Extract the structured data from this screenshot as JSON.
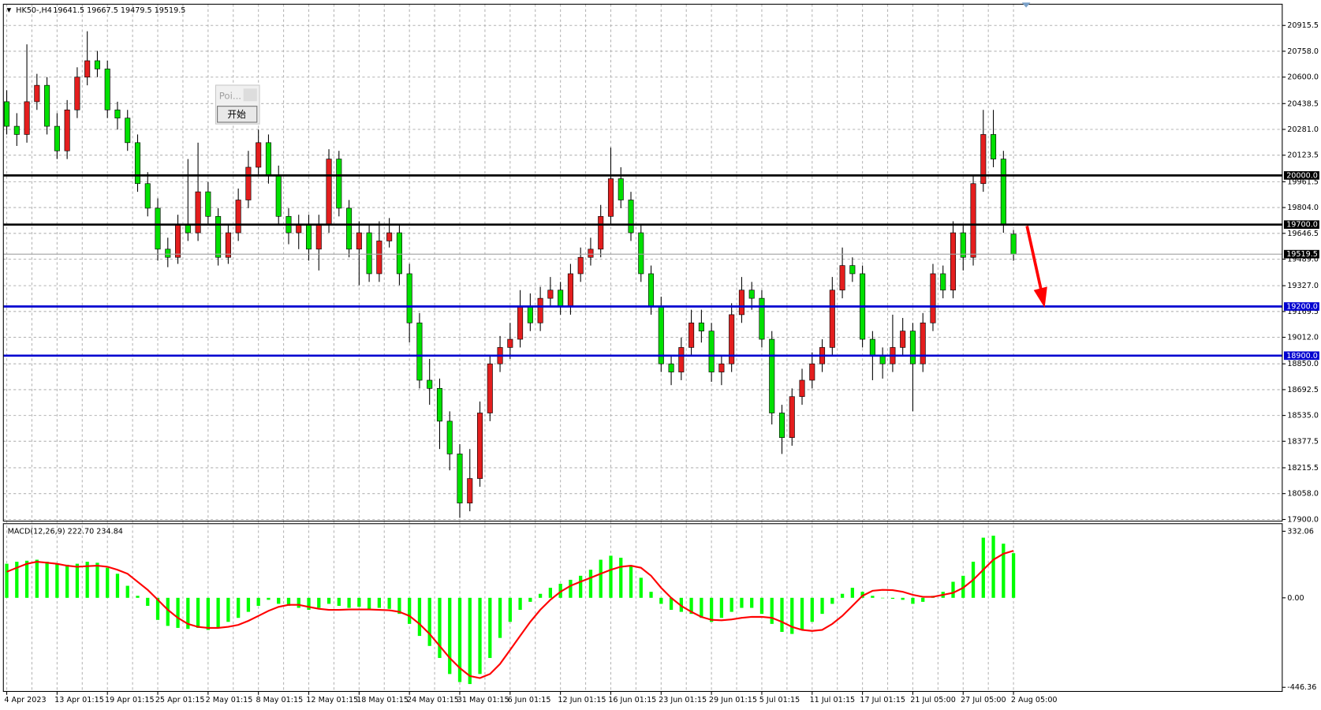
{
  "chart_data": {
    "type": "candlestick",
    "symbol": "HK50-,H4",
    "up_color": "#e41e1e",
    "down_color": "#00e000",
    "wick_color": "#000000",
    "ylim": [
      17890,
      21045
    ],
    "yticks": [
      20915.5,
      {
        "value": 20758,
        "label": "20758.0"
      },
      {
        "value": 20600,
        "label": "20600.0"
      },
      20438.5,
      {
        "value": 20281,
        "label": "20281.0"
      },
      20123.5,
      19961.5,
      {
        "value": 19804,
        "label": "19804.0"
      },
      19646.5,
      {
        "value": 19489,
        "label": "19489.0"
      },
      {
        "value": 19327,
        "label": "19327.0"
      },
      19169.5,
      {
        "value": 19012,
        "label": "19012.0"
      },
      {
        "value": 18850,
        "label": "18850.0"
      },
      18692.5,
      {
        "value": 18535,
        "label": "18535.0"
      },
      18377.5,
      18215.5,
      {
        "value": 18058,
        "label": "18058.0"
      },
      {
        "value": 17900,
        "label": "17900.0"
      }
    ],
    "grid": true,
    "categories": [
      "4 Apr 2023",
      null,
      null,
      null,
      null,
      "13 Apr 01:15",
      null,
      null,
      null,
      null,
      "19 Apr 01:15",
      null,
      null,
      null,
      null,
      "25 Apr 01:15",
      null,
      null,
      null,
      null,
      "2 May 01:15",
      null,
      null,
      null,
      null,
      "8 May 01:15",
      null,
      null,
      null,
      null,
      "12 May 01:15",
      null,
      null,
      null,
      null,
      "18 May 01:15",
      null,
      null,
      null,
      null,
      "24 May 01:15",
      null,
      null,
      null,
      null,
      "31 May 01:15",
      null,
      null,
      null,
      null,
      "6 Jun 01:15",
      null,
      null,
      null,
      null,
      "12 Jun 01:15",
      null,
      null,
      null,
      null,
      "16 Jun 01:15",
      null,
      null,
      null,
      null,
      "23 Jun 01:15",
      null,
      null,
      null,
      null,
      "29 Jun 01:15",
      null,
      null,
      null,
      null,
      "5 Jul 01:15",
      null,
      null,
      null,
      null,
      "11 Jul 01:15",
      null,
      null,
      null,
      null,
      "17 Jul 01:15",
      null,
      null,
      null,
      null,
      "21 Jul 05:00",
      null,
      null,
      null,
      null,
      "27 Jul 05:00",
      null,
      null,
      null,
      null,
      "2 Aug 05:00"
    ],
    "candles": [
      [
        20450,
        20520,
        20250,
        20300
      ],
      [
        20300,
        20380,
        20180,
        20250
      ],
      [
        20250,
        20800,
        20200,
        20450
      ],
      [
        20450,
        20620,
        20400,
        20550
      ],
      [
        20550,
        20600,
        20250,
        20300
      ],
      [
        20300,
        20380,
        20100,
        20150
      ],
      [
        20150,
        20460,
        20100,
        20400
      ],
      [
        20400,
        20660,
        20350,
        20600
      ],
      [
        20600,
        20880,
        20550,
        20700
      ],
      [
        20700,
        20760,
        20600,
        20650
      ],
      [
        20650,
        20700,
        20350,
        20400
      ],
      [
        20400,
        20450,
        20280,
        20350
      ],
      [
        20350,
        20400,
        20150,
        20200
      ],
      [
        20200,
        20250,
        19900,
        19950
      ],
      [
        19950,
        20020,
        19750,
        19800
      ],
      [
        19800,
        19860,
        19480,
        19550
      ],
      [
        19550,
        19620,
        19440,
        19500
      ],
      [
        19500,
        19760,
        19460,
        19700
      ],
      [
        19700,
        20100,
        19600,
        19650
      ],
      [
        19650,
        20200,
        19600,
        19900
      ],
      [
        19900,
        19960,
        19700,
        19750
      ],
      [
        19750,
        19800,
        19450,
        19500
      ],
      [
        19500,
        19700,
        19460,
        19650
      ],
      [
        19650,
        19920,
        19600,
        19850
      ],
      [
        19850,
        20150,
        19800,
        20050
      ],
      [
        20050,
        20280,
        20000,
        20200
      ],
      [
        20200,
        20250,
        19950,
        20000
      ],
      [
        20000,
        20060,
        19700,
        19750
      ],
      [
        19750,
        19800,
        19580,
        19650
      ],
      [
        19650,
        19760,
        19550,
        19700
      ],
      [
        19700,
        19760,
        19480,
        19550
      ],
      [
        19550,
        19760,
        19420,
        19700
      ],
      [
        19700,
        20160,
        19650,
        20100
      ],
      [
        20100,
        20150,
        19750,
        19800
      ],
      [
        19800,
        19850,
        19500,
        19550
      ],
      [
        19550,
        19720,
        19330,
        19650
      ],
      [
        19650,
        19700,
        19350,
        19400
      ],
      [
        19400,
        19720,
        19350,
        19600
      ],
      [
        19600,
        19740,
        19560,
        19650
      ],
      [
        19650,
        19700,
        19330,
        19400
      ],
      [
        19400,
        19460,
        18980,
        19100
      ],
      [
        19100,
        19160,
        18700,
        18750
      ],
      [
        18750,
        18880,
        18600,
        18700
      ],
      [
        18700,
        18760,
        18330,
        18500
      ],
      [
        18500,
        18560,
        18200,
        18300
      ],
      [
        18300,
        18360,
        17910,
        18000
      ],
      [
        18000,
        18330,
        17950,
        18150
      ],
      [
        18150,
        18620,
        18100,
        18550
      ],
      [
        18550,
        18900,
        18500,
        18850
      ],
      [
        18850,
        19020,
        18800,
        18950
      ],
      [
        18950,
        19100,
        18880,
        19000
      ],
      [
        19000,
        19300,
        18950,
        19200
      ],
      [
        19200,
        19280,
        19050,
        19100
      ],
      [
        19100,
        19320,
        19050,
        19250
      ],
      [
        19250,
        19380,
        19200,
        19300
      ],
      [
        19300,
        19350,
        19150,
        19200
      ],
      [
        19200,
        19460,
        19150,
        19400
      ],
      [
        19400,
        19560,
        19350,
        19500
      ],
      [
        19500,
        19620,
        19450,
        19550
      ],
      [
        19550,
        19820,
        19500,
        19750
      ],
      [
        19750,
        20170,
        19700,
        19980
      ],
      [
        19980,
        20050,
        19800,
        19850
      ],
      [
        19850,
        19900,
        19600,
        19650
      ],
      [
        19650,
        19700,
        19350,
        19400
      ],
      [
        19400,
        19450,
        19150,
        19200
      ],
      [
        19200,
        19260,
        18800,
        18850
      ],
      [
        18850,
        18900,
        18720,
        18800
      ],
      [
        18800,
        19010,
        18750,
        18950
      ],
      [
        18950,
        19180,
        18900,
        19100
      ],
      [
        19100,
        19180,
        18980,
        19050
      ],
      [
        19050,
        19100,
        18740,
        18800
      ],
      [
        18800,
        18900,
        18720,
        18850
      ],
      [
        18850,
        19220,
        18800,
        19150
      ],
      [
        19150,
        19380,
        19100,
        19300
      ],
      [
        19300,
        19350,
        19180,
        19250
      ],
      [
        19250,
        19300,
        18950,
        19000
      ],
      [
        19000,
        19050,
        18480,
        18550
      ],
      [
        18550,
        18600,
        18300,
        18400
      ],
      [
        18400,
        18700,
        18350,
        18650
      ],
      [
        18650,
        18820,
        18600,
        18750
      ],
      [
        18750,
        18920,
        18700,
        18850
      ],
      [
        18850,
        19000,
        18800,
        18950
      ],
      [
        18950,
        19380,
        18900,
        19300
      ],
      [
        19300,
        19560,
        19250,
        19450
      ],
      [
        19450,
        19500,
        19350,
        19400
      ],
      [
        19400,
        19450,
        18950,
        19000
      ],
      [
        19000,
        19050,
        18750,
        18900
      ],
      [
        18900,
        18950,
        18760,
        18850
      ],
      [
        18850,
        19150,
        18800,
        18950
      ],
      [
        18950,
        19130,
        18900,
        19050
      ],
      [
        19050,
        19100,
        18560,
        18850
      ],
      [
        18850,
        19160,
        18800,
        19100
      ],
      [
        19100,
        19460,
        19050,
        19400
      ],
      [
        19400,
        19450,
        19250,
        19300
      ],
      [
        19300,
        19720,
        19250,
        19650
      ],
      [
        19650,
        19700,
        19420,
        19500
      ],
      [
        19500,
        20000,
        19450,
        19950
      ],
      [
        19950,
        20400,
        19900,
        20250
      ],
      [
        20250,
        20400,
        20050,
        20100
      ],
      [
        20100,
        20150,
        19650,
        19700
      ],
      [
        19641.5,
        19667.5,
        19479.5,
        19519.5
      ]
    ],
    "levels": [
      {
        "value": 20000,
        "label": "20000.0",
        "color": "#000000"
      },
      {
        "value": 19700,
        "label": "19700.0",
        "color": "#000000"
      },
      {
        "value": 19200,
        "label": "19200.0",
        "color": "#0000d0"
      },
      {
        "value": 18900,
        "label": "18900.0",
        "color": "#0000d0"
      }
    ],
    "current_price_color": "#a0a0a0",
    "widget": {
      "title": "Poi...",
      "button": "开始"
    },
    "macd": {
      "name": "MACD(12,26,9)",
      "value_labels": [
        "222.70",
        "234.84"
      ],
      "ylim": [
        -467,
        370
      ],
      "yticks": [
        332.06,
        {
          "value": 0,
          "label": "0.00"
        },
        -446.36
      ],
      "hist_color": "#00ff00",
      "signal_color": "#ff0000",
      "histogram": [
        170,
        180,
        185,
        190,
        180,
        170,
        165,
        170,
        180,
        175,
        150,
        120,
        60,
        10,
        -40,
        -110,
        -140,
        -150,
        -155,
        -150,
        -160,
        -150,
        -120,
        -100,
        -70,
        -40,
        -10,
        -30,
        -40,
        -50,
        -60,
        -50,
        -30,
        -40,
        -50,
        -45,
        -55,
        -50,
        -55,
        -80,
        -130,
        -190,
        -240,
        -300,
        -380,
        -420,
        -430,
        -380,
        -300,
        -200,
        -120,
        -60,
        -20,
        20,
        50,
        70,
        90,
        110,
        140,
        190,
        210,
        200,
        160,
        100,
        30,
        -30,
        -60,
        -70,
        -80,
        -100,
        -120,
        -100,
        -70,
        -50,
        -50,
        -80,
        -130,
        -170,
        -180,
        -160,
        -120,
        -80,
        -30,
        20,
        50,
        30,
        10,
        0,
        -5,
        -10,
        -30,
        -20,
        10,
        30,
        80,
        110,
        180,
        300,
        310,
        270,
        222.7
      ],
      "signal": [
        130,
        150,
        170,
        180,
        175,
        170,
        160,
        155,
        158,
        160,
        155,
        140,
        120,
        80,
        40,
        -10,
        -60,
        -100,
        -130,
        -145,
        -150,
        -150,
        -145,
        -135,
        -115,
        -90,
        -65,
        -45,
        -35,
        -35,
        -45,
        -55,
        -60,
        -60,
        -58,
        -58,
        -58,
        -60,
        -62,
        -70,
        -90,
        -130,
        -180,
        -240,
        -300,
        -350,
        -390,
        -400,
        -380,
        -330,
        -260,
        -190,
        -120,
        -60,
        -10,
        30,
        60,
        80,
        100,
        120,
        140,
        155,
        160,
        150,
        110,
        50,
        0,
        -40,
        -70,
        -95,
        -110,
        -112,
        -108,
        -100,
        -95,
        -95,
        -100,
        -120,
        -145,
        -160,
        -165,
        -160,
        -130,
        -90,
        -40,
        10,
        35,
        40,
        38,
        30,
        15,
        5,
        5,
        15,
        25,
        50,
        90,
        140,
        190,
        220,
        234.84
      ]
    }
  }
}
